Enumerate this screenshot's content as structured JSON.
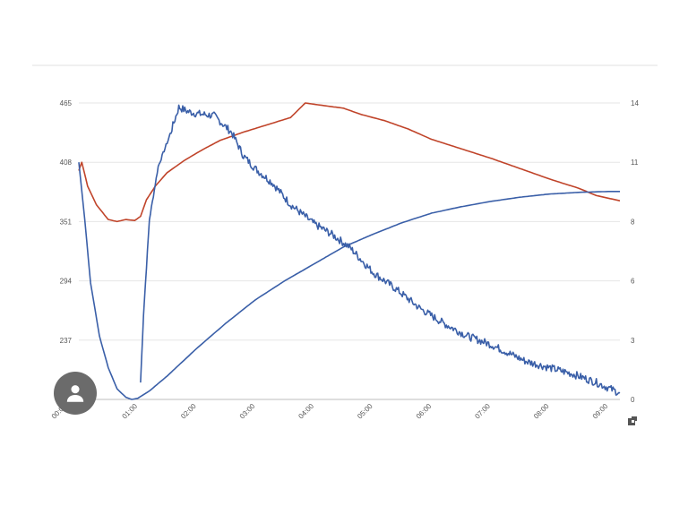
{
  "chart_data": {
    "type": "line",
    "title": "",
    "xlabel": "",
    "ylabel_left": "",
    "ylabel_right": "",
    "grid": true,
    "legend": "none",
    "x_ticks": [
      "00:00",
      "01:00",
      "02:00",
      "03:00",
      "04:00",
      "05:00",
      "06:00",
      "07:00",
      "08:00",
      "09:00"
    ],
    "xlim": [
      0,
      9.2
    ],
    "y_left_ticks": [
      "465",
      "408",
      "351",
      "294",
      "237"
    ],
    "ylim_left": [
      180,
      465
    ],
    "y_right_ticks": [
      "14",
      "11",
      "8",
      "6",
      "3",
      "0"
    ],
    "ylim_right": [
      0,
      14
    ],
    "series": [
      {
        "color": "#c0442a",
        "axis": "left",
        "noise": 0,
        "points": [
          [
            0,
            400
          ],
          [
            0.05,
            408
          ],
          [
            0.15,
            385
          ],
          [
            0.3,
            367
          ],
          [
            0.5,
            353
          ],
          [
            0.65,
            351
          ],
          [
            0.8,
            353
          ],
          [
            0.95,
            352
          ],
          [
            1.05,
            356
          ],
          [
            1.15,
            372
          ],
          [
            1.3,
            385
          ],
          [
            1.5,
            398
          ],
          [
            1.8,
            410
          ],
          [
            2.1,
            420
          ],
          [
            2.4,
            429
          ],
          [
            2.8,
            437
          ],
          [
            3.2,
            444
          ],
          [
            3.6,
            451
          ],
          [
            3.85,
            465
          ],
          [
            4.1,
            463
          ],
          [
            4.5,
            460
          ],
          [
            4.8,
            454
          ],
          [
            5.2,
            448
          ],
          [
            5.6,
            440
          ],
          [
            6.0,
            430
          ],
          [
            6.5,
            421
          ],
          [
            7.0,
            412
          ],
          [
            7.5,
            402
          ],
          [
            8.0,
            392
          ],
          [
            8.5,
            383
          ],
          [
            8.8,
            376
          ],
          [
            9.2,
            371
          ]
        ]
      },
      {
        "color": "#3a5fa8",
        "axis": "right",
        "noise": 0,
        "points": [
          [
            0,
            11.2
          ],
          [
            0.1,
            8.5
          ],
          [
            0.2,
            5.5
          ],
          [
            0.35,
            3.0
          ],
          [
            0.5,
            1.5
          ],
          [
            0.65,
            0.5
          ],
          [
            0.8,
            0.1
          ],
          [
            0.9,
            0.0
          ],
          [
            1.0,
            0.05
          ],
          [
            1.2,
            0.4
          ],
          [
            1.5,
            1.1
          ],
          [
            2.0,
            2.4
          ],
          [
            2.5,
            3.6
          ],
          [
            3.0,
            4.7
          ],
          [
            3.5,
            5.6
          ],
          [
            4.0,
            6.4
          ],
          [
            4.5,
            7.2
          ],
          [
            5.0,
            7.8
          ],
          [
            5.5,
            8.35
          ],
          [
            6.0,
            8.8
          ],
          [
            6.5,
            9.1
          ],
          [
            7.0,
            9.35
          ],
          [
            7.5,
            9.55
          ],
          [
            8.0,
            9.7
          ],
          [
            8.5,
            9.78
          ],
          [
            9.0,
            9.82
          ],
          [
            9.2,
            9.82
          ]
        ]
      },
      {
        "color": "#3a5fa8",
        "axis": "right",
        "noise": 0.18,
        "points": [
          [
            1.05,
            0.8
          ],
          [
            1.1,
            4.0
          ],
          [
            1.2,
            8.5
          ],
          [
            1.35,
            11.0
          ],
          [
            1.55,
            12.5
          ],
          [
            1.7,
            13.8
          ],
          [
            1.85,
            13.6
          ],
          [
            2.0,
            13.5
          ],
          [
            2.3,
            13.4
          ],
          [
            2.6,
            12.6
          ],
          [
            2.8,
            11.5
          ],
          [
            3.0,
            10.9
          ],
          [
            3.3,
            10.2
          ],
          [
            3.6,
            9.2
          ],
          [
            4.0,
            8.3
          ],
          [
            4.3,
            7.8
          ],
          [
            4.6,
            7.2
          ],
          [
            5.0,
            6.0
          ],
          [
            5.4,
            5.2
          ],
          [
            5.8,
            4.3
          ],
          [
            6.2,
            3.6
          ],
          [
            6.6,
            3.0
          ],
          [
            7.0,
            2.6
          ],
          [
            7.3,
            2.2
          ],
          [
            7.6,
            1.8
          ],
          [
            8.0,
            1.5
          ],
          [
            8.4,
            1.2
          ],
          [
            8.8,
            0.8
          ],
          [
            9.2,
            0.3
          ]
        ]
      }
    ]
  },
  "icons": {
    "avatar": "person-icon",
    "corner": "resize-icon"
  }
}
